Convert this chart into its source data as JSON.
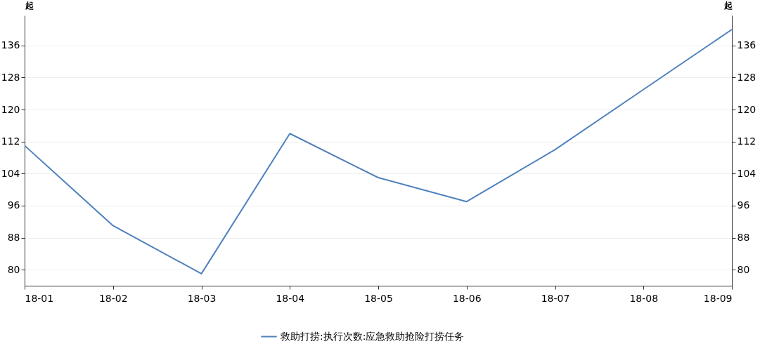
{
  "chart_data": {
    "type": "line",
    "ylabel": "起",
    "y2label": "起",
    "categories": [
      "18-01",
      "18-02",
      "18-03",
      "18-04",
      "18-05",
      "18-06",
      "18-07",
      "18-08",
      "18-09"
    ],
    "series": [
      {
        "name": "救助打捞:执行次数:应急救助抢险打捞任务",
        "color": "#4f81bd",
        "values": [
          111,
          91,
          79,
          114,
          103,
          97,
          110,
          125,
          140
        ]
      }
    ],
    "ylim": [
      76,
      143.5
    ],
    "yticks": [
      80,
      88,
      96,
      104,
      112,
      120,
      128,
      136
    ],
    "y2lim": [
      76,
      143.5
    ],
    "y2ticks": [
      80,
      88,
      96,
      104,
      112,
      120,
      128,
      136
    ],
    "grid": "y",
    "legend": "bottom",
    "marker": "none",
    "line_style": "solid"
  }
}
